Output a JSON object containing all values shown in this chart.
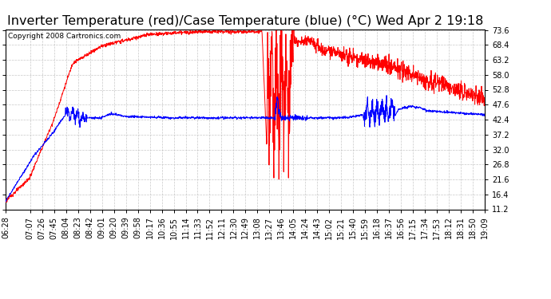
{
  "title": "Inverter Temperature (red)/Case Temperature (blue) (°C) Wed Apr 2 19:18",
  "copyright_text": "Copyright 2008 Cartronics.com",
  "ylabel_right_ticks": [
    11.2,
    16.4,
    21.6,
    26.8,
    32.0,
    37.2,
    42.4,
    47.6,
    52.8,
    58.0,
    63.2,
    68.4,
    73.6
  ],
  "ymin": 11.2,
  "ymax": 73.6,
  "background_color": "#FFFFFF",
  "plot_bg_color": "#FFFFFF",
  "grid_color": "#BBBBBB",
  "red_color": "#FF0000",
  "blue_color": "#0000FF",
  "title_fontsize": 11.5,
  "tick_fontsize": 7,
  "copyright_fontsize": 6.5,
  "x_tick_labels": [
    "06:28",
    "07:07",
    "07:26",
    "07:45",
    "08:04",
    "08:23",
    "08:42",
    "09:01",
    "09:20",
    "09:39",
    "09:58",
    "10:17",
    "10:36",
    "10:55",
    "11:14",
    "11:33",
    "11:52",
    "12:11",
    "12:30",
    "12:49",
    "13:08",
    "13:27",
    "13:46",
    "14:05",
    "14:24",
    "14:43",
    "15:02",
    "15:21",
    "15:40",
    "15:59",
    "16:18",
    "16:37",
    "16:56",
    "17:15",
    "17:34",
    "17:53",
    "18:12",
    "18:31",
    "18:50",
    "19:09"
  ]
}
